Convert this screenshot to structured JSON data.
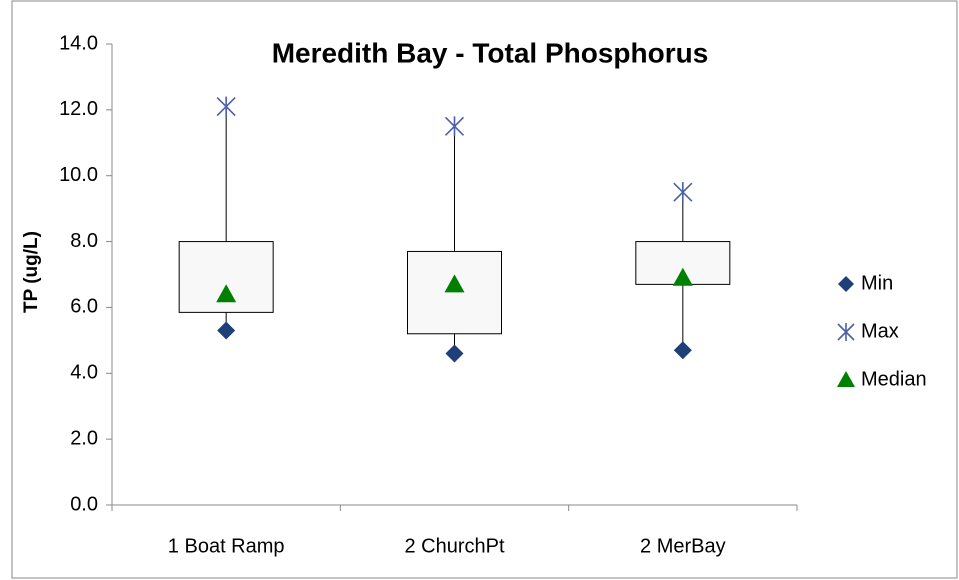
{
  "chart_data": {
    "type": "box",
    "title": "Meredith Bay - Total Phosphorus",
    "y_label": "TP (ug/L)",
    "categories": [
      "1 Boat Ramp",
      "2 ChurchPt",
      "2 MerBay"
    ],
    "q1": [
      5.85,
      5.2,
      6.7
    ],
    "q3": [
      8.0,
      7.7,
      8.0
    ],
    "series": [
      {
        "name": "Min",
        "color": "#1f3f7a",
        "marker": "diamond",
        "values": [
          5.3,
          4.6,
          4.7
        ]
      },
      {
        "name": "Max",
        "color": "#4a5fa8",
        "marker": "asterisk",
        "values": [
          12.1,
          11.5,
          9.5
        ]
      },
      {
        "name": "Median",
        "color": "#008000",
        "marker": "triangle",
        "values": [
          6.4,
          6.7,
          6.9
        ]
      }
    ],
    "box_fill": "#f8f8f8",
    "ylim": [
      0,
      14
    ],
    "yticks": [
      {
        "value": 0,
        "label": "0.0"
      },
      {
        "value": 2,
        "label": "2.0"
      },
      {
        "value": 4,
        "label": "4.0"
      },
      {
        "value": 6,
        "label": "6.0"
      },
      {
        "value": 8,
        "label": "8.0"
      },
      {
        "value": 10,
        "label": "10.0"
      },
      {
        "value": 12,
        "label": "12.0"
      },
      {
        "value": 14,
        "label": "14.0"
      }
    ],
    "grid": false,
    "legend": "right"
  }
}
